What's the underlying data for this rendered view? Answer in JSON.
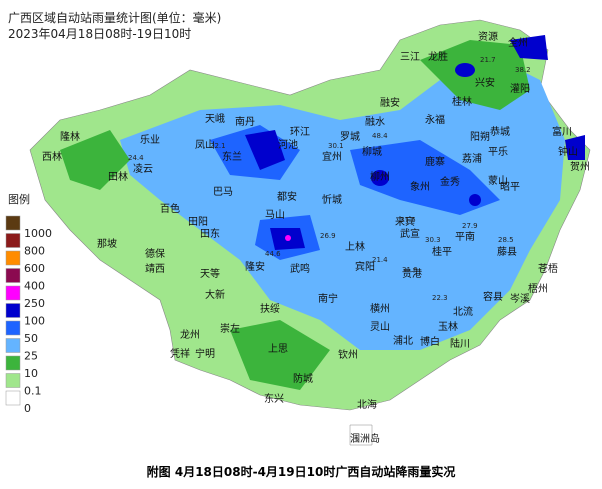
{
  "header": {
    "title": "广西区域自动站雨量统计图(单位：毫米)",
    "subtitle": "2023年04月18日08时-19日10时"
  },
  "legend": {
    "title": "图例",
    "levels": [
      1000,
      800,
      600,
      400,
      250,
      100,
      50,
      25,
      10,
      0.1,
      0
    ],
    "colors": [
      "#5b3a12",
      "#8b1a1a",
      "#ff8c00",
      "#8b0a50",
      "#ff00ff",
      "#0000cd",
      "#1e64ff",
      "#64b4ff",
      "#3cb43c",
      "#a0e68c",
      "#ffffff"
    ]
  },
  "places": [
    "隆林",
    "西林",
    "田林",
    "凌云",
    "乐业",
    "天峨",
    "南丹",
    "环江",
    "罗城",
    "融安",
    "融水",
    "三江",
    "龙胜",
    "资源",
    "全州",
    "兴安",
    "灌阳",
    "桂林",
    "永福",
    "阳朔",
    "恭城",
    "富川",
    "钟山",
    "贺州",
    "平乐",
    "昭平",
    "荔浦",
    "蒙山",
    "金秀",
    "象州",
    "柳州",
    "鹿寨",
    "柳城",
    "宜州",
    "河池",
    "东兰",
    "巴马",
    "凤山",
    "百色",
    "田阳",
    "田东",
    "德保",
    "那坡",
    "靖西",
    "天等",
    "大新",
    "龙州",
    "崇左",
    "宁明",
    "凭祥",
    "扶绥",
    "隆安",
    "马山",
    "都安",
    "上林",
    "宾阳",
    "武鸣",
    "南宁",
    "忻城",
    "来宾",
    "武宣",
    "桂平",
    "平南",
    "藤县",
    "梧州",
    "苍梧",
    "岑溪",
    "容县",
    "北流",
    "玉林",
    "陆川",
    "博白",
    "贵港",
    "横州",
    "灵山",
    "浦北",
    "钦州",
    "防城",
    "上思",
    "东兴",
    "北海",
    "涠洲岛"
  ],
  "stations": [
    21.7,
    38.2,
    30.1,
    48.4,
    37.6,
    31.6,
    30.3,
    27.9,
    28.5,
    22.3,
    21.4,
    26.9,
    44.6,
    24.4,
    22.1
  ],
  "caption": "附图   4月18日08时-4月19日10时广西自动站降雨量实况"
}
